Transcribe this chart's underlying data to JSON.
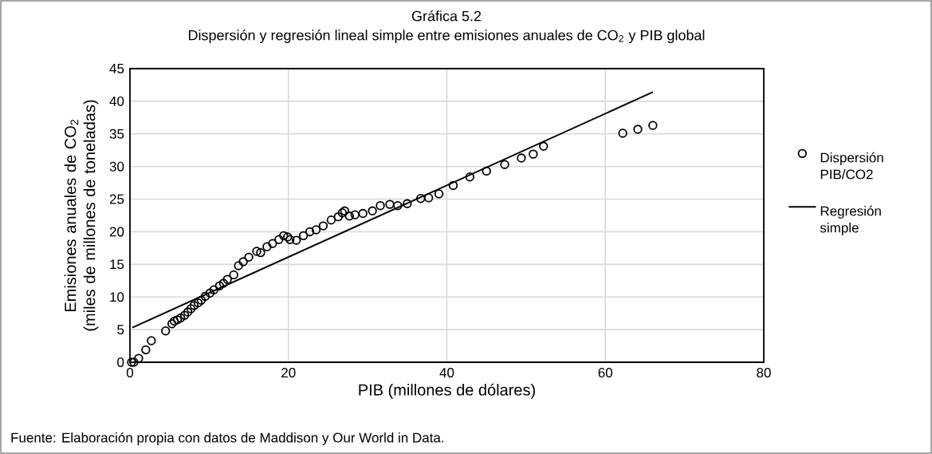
{
  "chart_data": {
    "type": "scatter",
    "title": "Gráfica 5.2",
    "subtitle": "Dispersión y regresión lineal simple entre emisiones anuales de CO$_{2}$ y PIB global",
    "xlabel": "PIB (millones de dólares)",
    "ylabel": "Emisiones anuales de CO$_{2}$ (miles de millones de toneladas)",
    "annotations": [
      "Fuente: Elaboración propia con datos de Maddison y Our World in Data."
    ],
    "xlim": [
      0,
      80
    ],
    "xticks": [
      0,
      20,
      40,
      60,
      80
    ],
    "ylim": [
      0,
      45
    ],
    "yticks": [
      0,
      5,
      10,
      15,
      20,
      25,
      30,
      35,
      40,
      45
    ],
    "grid": true,
    "legend": "right",
    "series": [
      {
        "name": "Dispersión PIB/CO2",
        "marker": "circle",
        "color": "#000000",
        "x": [
          0.2,
          0.5,
          1.1,
          2.0,
          2.7,
          4.5,
          5.3,
          5.6,
          6.0,
          6.4,
          6.9,
          7.3,
          7.7,
          8.1,
          8.6,
          9.0,
          9.5,
          10.1,
          10.6,
          11.3,
          11.8,
          12.3,
          13.1,
          13.7,
          14.3,
          15.0,
          16.0,
          16.5,
          17.3,
          18.0,
          18.8,
          19.4,
          19.9,
          20.2,
          21.0,
          21.9,
          22.7,
          23.5,
          24.4,
          25.4,
          26.3,
          26.8,
          27.1,
          27.7,
          28.4,
          29.4,
          30.6,
          31.6,
          32.8,
          33.8,
          35.0,
          36.7,
          37.7,
          39.0,
          40.8,
          42.9,
          45.0,
          47.3,
          49.4,
          50.9,
          52.2,
          62.2,
          64.1,
          66.0
        ],
        "values": [
          0.0,
          0.0,
          0.6,
          1.9,
          3.3,
          4.8,
          5.9,
          6.3,
          6.5,
          6.8,
          7.2,
          7.7,
          8.2,
          8.7,
          9.1,
          9.5,
          10.1,
          10.6,
          11.1,
          11.7,
          12.1,
          12.7,
          13.4,
          14.8,
          15.4,
          16.1,
          17.0,
          16.8,
          17.7,
          18.2,
          18.8,
          19.4,
          19.2,
          18.8,
          18.7,
          19.4,
          20.0,
          20.3,
          20.9,
          21.8,
          22.3,
          22.9,
          23.2,
          22.4,
          22.6,
          22.8,
          23.2,
          24.0,
          24.2,
          24.0,
          24.3,
          25.1,
          25.2,
          25.8,
          27.1,
          28.4,
          29.3,
          30.3,
          31.3,
          31.9,
          33.1,
          35.1,
          35.7,
          36.3
        ]
      },
      {
        "name": "Regresión simple",
        "type": "line",
        "marker": "none",
        "line_style": "solid",
        "color": "#000000",
        "x": [
          0.3,
          66.0
        ],
        "values": [
          5.3,
          41.4
        ]
      }
    ]
  }
}
